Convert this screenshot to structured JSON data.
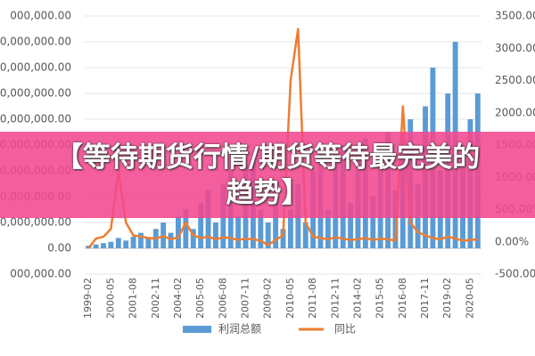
{
  "chart_data": {
    "type": "bar-line",
    "categories": [
      "1999-02",
      null,
      null,
      "2000-05",
      null,
      null,
      "2001-08",
      null,
      null,
      "2002-11",
      null,
      null,
      "2004-02",
      null,
      null,
      "2005-05",
      null,
      null,
      "2006-08",
      null,
      null,
      "2007-11",
      null,
      null,
      "2009-02",
      null,
      null,
      "2010-05",
      null,
      null,
      "2011-08",
      null,
      null,
      "2012-11",
      null,
      null,
      "2014-02",
      null,
      null,
      "2015-05",
      null,
      null,
      "2016-08",
      null,
      null,
      "2017-11",
      null,
      null,
      "2019-02",
      null,
      null,
      "2020-05",
      null
    ],
    "series": [
      {
        "name": "利润总额",
        "color": "#5b9bd5",
        "kind": "bar",
        "values": [
          200000,
          300000,
          400000,
          500000,
          800000,
          600000,
          900000,
          1200000,
          800000,
          1500000,
          2000000,
          1200000,
          2500000,
          3000000,
          1500000,
          3500000,
          4500000,
          2000000,
          5000000,
          6000000,
          2500000,
          6500000,
          7000000,
          3000000,
          2000000,
          4000000,
          1500000,
          3000000,
          5000000,
          2000000,
          6000000,
          7500000,
          3000000,
          6500000,
          8000000,
          3500000,
          7000000,
          8500000,
          4000000,
          8000000,
          9000000,
          4500000,
          9000000,
          10000000,
          5000000,
          11000000,
          14000000,
          6000000,
          12000000,
          16000000,
          7000000,
          10000000,
          12000000
        ]
      },
      {
        "name": "同比",
        "color": "#ed7d31",
        "kind": "line",
        "axis": "y2",
        "values": [
          -100,
          50,
          80,
          200,
          1100,
          300,
          100,
          80,
          60,
          50,
          90,
          40,
          70,
          300,
          100,
          60,
          80,
          40,
          70,
          60,
          30,
          50,
          40,
          20,
          -50,
          30,
          100,
          2500,
          3300,
          300,
          80,
          60,
          40,
          70,
          50,
          30,
          40,
          60,
          30,
          50,
          40,
          20,
          2100,
          300,
          150,
          100,
          60,
          40,
          80,
          50,
          20,
          30,
          40
        ]
      }
    ],
    "ylim": [
      -2000000,
      18000000
    ],
    "yticks": [
      {
        "value": -2000000,
        "label": "000,000.00"
      },
      {
        "value": 0,
        "label": "0.00"
      },
      {
        "value": 2000000,
        "label": "0,000,000.00"
      },
      {
        "value": 4000000,
        "label": "0,000,000.00"
      },
      {
        "value": 6000000,
        "label": "0,000,000.00"
      },
      {
        "value": 8000000,
        "label": "0,000,000.00"
      },
      {
        "value": 10000000,
        "label": "0,000,000.00"
      },
      {
        "value": 12000000,
        "label": "0,000,000.00"
      },
      {
        "value": 14000000,
        "label": "0,000,000.00"
      },
      {
        "value": 16000000,
        "label": "0,000,000.00"
      },
      {
        "value": 18000000,
        "label": "000,000.00"
      }
    ],
    "y2lim": [
      -500,
      3500
    ],
    "y2ticks": [
      {
        "value": -500,
        "label": "-500.00%"
      },
      {
        "value": 0,
        "label": "0.00%"
      },
      {
        "value": 500,
        "label": "500.00%"
      },
      {
        "value": 1000,
        "label": "1000.00%"
      },
      {
        "value": 1500,
        "label": "1500.00%"
      },
      {
        "value": 2000,
        "label": "2000.00%"
      },
      {
        "value": 2500,
        "label": "2500.00%"
      },
      {
        "value": 3000,
        "label": "3000.00%"
      },
      {
        "value": 3500,
        "label": "3500.00%"
      }
    ],
    "grid": true
  },
  "banner": {
    "text": "【等待期货行情/期货等待最完美的趋势】"
  }
}
